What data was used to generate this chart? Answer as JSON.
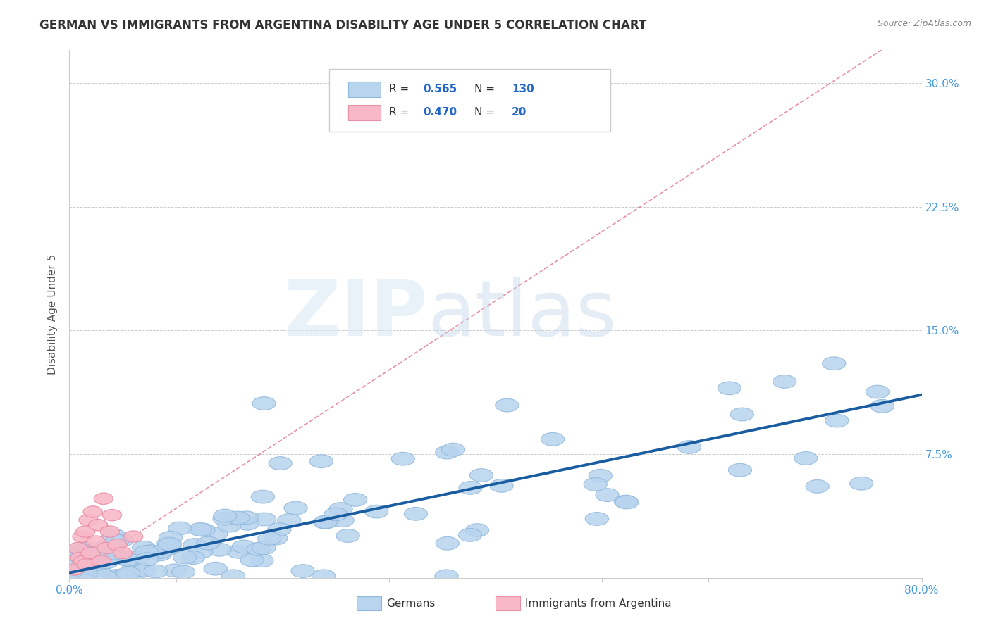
{
  "title": "GERMAN VS IMMIGRANTS FROM ARGENTINA DISABILITY AGE UNDER 5 CORRELATION CHART",
  "source": "Source: ZipAtlas.com",
  "ylabel": "Disability Age Under 5",
  "xlim": [
    0.0,
    0.8
  ],
  "ylim": [
    0.0,
    0.32
  ],
  "xticks": [
    0.0,
    0.1,
    0.2,
    0.3,
    0.4,
    0.5,
    0.6,
    0.7,
    0.8
  ],
  "xticklabels": [
    "0.0%",
    "",
    "",
    "",
    "",
    "",
    "",
    "",
    "80.0%"
  ],
  "ytick_positions": [
    0.0,
    0.075,
    0.15,
    0.225,
    0.3
  ],
  "ytick_labels": [
    "",
    "7.5%",
    "15.0%",
    "22.5%",
    "30.0%"
  ],
  "r_german": 0.565,
  "n_german": 130,
  "r_argentina": 0.47,
  "n_argentina": 20,
  "german_face_color": "#b8d4ee",
  "german_edge_color": "#90b8dc",
  "argentina_face_color": "#f8b8c8",
  "argentina_edge_color": "#e890a8",
  "regression_german_color": "#1a5ca0",
  "regression_argentina_color": "#e06080",
  "title_color": "#333333",
  "axis_label_color": "#555555",
  "tick_label_color": "#4499dd",
  "grid_color": "#cccccc",
  "background_color": "#ffffff",
  "legend_r_color": "#2266cc",
  "legend_text_color": "#333333"
}
